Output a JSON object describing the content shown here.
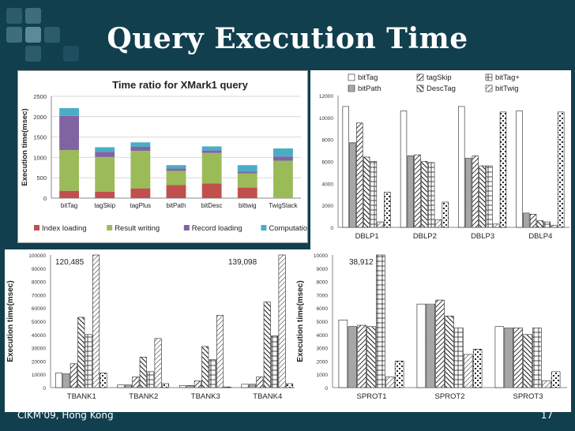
{
  "slide": {
    "title": "Query Execution Time",
    "footer": "CIKM'09, Hong Kong",
    "page": "17"
  },
  "colors": {
    "background": "#123f4e",
    "title": "#ffffff"
  },
  "chart_data": [
    {
      "type": "bar",
      "stacked": true,
      "title": "Time ratio for XMark1 query",
      "ylabel": "Execution time(msec)",
      "ylim": [
        0,
        2500
      ],
      "yticks": [
        "0",
        "500",
        "1000",
        "1500",
        "2000",
        "2500"
      ],
      "categories": [
        "bitTag",
        "tagSkip",
        "tagPlus",
        "bitPath",
        "bitDesc",
        "bittwig",
        "TwigStack"
      ],
      "series": [
        {
          "name": "Index loading",
          "color": "#c0504d",
          "values": [
            180,
            160,
            240,
            320,
            360,
            260,
            0
          ]
        },
        {
          "name": "Result writing",
          "color": "#9bbb59",
          "values": [
            1000,
            850,
            920,
            350,
            750,
            350,
            920
          ]
        },
        {
          "name": "Record loading",
          "color": "#8064a2",
          "values": [
            840,
            130,
            100,
            60,
            60,
            40,
            100
          ]
        },
        {
          "name": "Computation",
          "color": "#4bacc6",
          "values": [
            190,
            110,
            110,
            80,
            100,
            160,
            200
          ]
        }
      ],
      "legend": "bottom",
      "grid": true
    },
    {
      "type": "bar",
      "ylim": [
        0,
        12000
      ],
      "yticks": [
        "0",
        "2000",
        "4000",
        "6000",
        "8000",
        "10000",
        "12000"
      ],
      "categories": [
        "DBLP1",
        "DBLP2",
        "DBLP3",
        "DBLP4"
      ],
      "series": [
        {
          "name": "bitTag",
          "values": [
            11000,
            10600,
            11000,
            10600
          ]
        },
        {
          "name": "bitPath",
          "values": [
            7700,
            6500,
            6300,
            1300
          ]
        },
        {
          "name": "tagSkip",
          "values": [
            9500,
            6600,
            6500,
            1200
          ]
        },
        {
          "name": "DescTag",
          "values": [
            6400,
            6000,
            5600,
            600
          ]
        },
        {
          "name": "bitTag+",
          "values": [
            6000,
            5900,
            5600,
            500
          ]
        },
        {
          "name": "bitTwig",
          "values": [
            500,
            700,
            300,
            200
          ]
        },
        {
          "name": "",
          "values": [
            3200,
            2300,
            10500,
            10500
          ]
        }
      ],
      "legend": "top"
    },
    {
      "type": "bar",
      "ylabel": "Execution time(msec)",
      "ylim": [
        0,
        100000
      ],
      "yticks": [
        "0",
        "10000",
        "20000",
        "30000",
        "40000",
        "50000",
        "60000",
        "70000",
        "80000",
        "90000",
        "100000"
      ],
      "categories": [
        "TBANK1",
        "TBANK2",
        "TBANK3",
        "TBANK4"
      ],
      "annotations": [
        "120,485",
        "139,098"
      ],
      "series": [
        {
          "name": "",
          "values": [
            11000,
            2000,
            1500,
            2500
          ]
        },
        {
          "name": "",
          "values": [
            10500,
            2000,
            1500,
            2500
          ]
        },
        {
          "name": "",
          "values": [
            18000,
            8000,
            5000,
            8000
          ]
        },
        {
          "name": "",
          "values": [
            53000,
            23000,
            31000,
            64500
          ]
        },
        {
          "name": "",
          "values": [
            40000,
            12000,
            21000,
            39000
          ]
        },
        {
          "name": "",
          "values": [
            100000,
            37000,
            54500,
            100000
          ]
        },
        {
          "name": "",
          "values": [
            11000,
            3000,
            500,
            3000
          ]
        }
      ]
    },
    {
      "type": "bar",
      "ylabel": "Execution time(msec)",
      "ylim": [
        0,
        10000
      ],
      "yticks": [
        "0",
        "1000",
        "2000",
        "3000",
        "4000",
        "5000",
        "6000",
        "7000",
        "8000",
        "9000",
        "10000"
      ],
      "categories": [
        "SPROT1",
        "SPROT2",
        "SPROT3"
      ],
      "annotations": [
        "38,912"
      ],
      "series": [
        {
          "name": "",
          "values": [
            5100,
            6300,
            4600
          ]
        },
        {
          "name": "",
          "values": [
            4600,
            6300,
            4500
          ]
        },
        {
          "name": "",
          "values": [
            4700,
            6600,
            4500
          ]
        },
        {
          "name": "",
          "values": [
            4600,
            5400,
            4000
          ]
        },
        {
          "name": "",
          "values": [
            10000,
            4500,
            4500
          ]
        },
        {
          "name": "",
          "values": [
            800,
            2500,
            500
          ]
        },
        {
          "name": "",
          "values": [
            2000,
            2900,
            1200
          ]
        }
      ]
    }
  ]
}
